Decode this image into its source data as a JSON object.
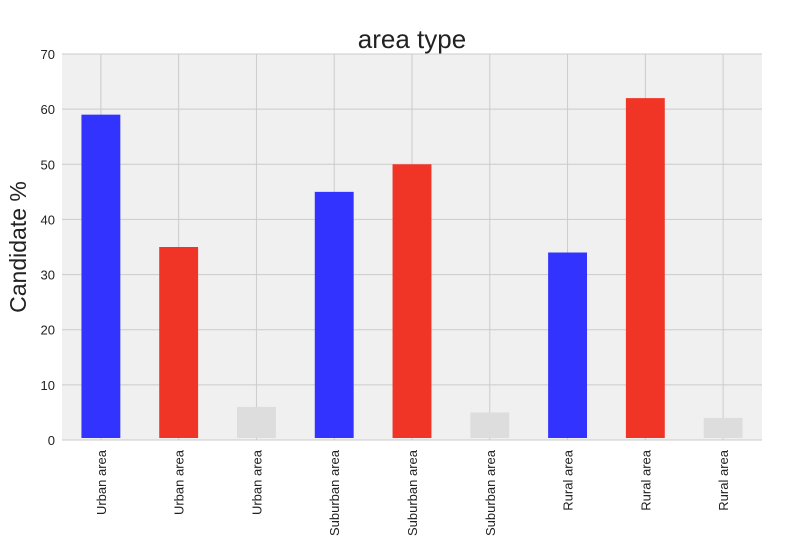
{
  "chart_data": {
    "type": "bar",
    "title": "area type",
    "xlabel": "",
    "ylabel": "Candidate %",
    "ylim": [
      0,
      70
    ],
    "yticks": [
      0,
      10,
      20,
      30,
      40,
      50,
      60,
      70
    ],
    "grid": true,
    "legend": "none",
    "categories": [
      "Urban area",
      "Urban area",
      "Urban area",
      "Suburban area",
      "Suburban area",
      "Suburban area",
      "Rural area",
      "Rural area",
      "Rural area"
    ],
    "values": [
      59,
      35,
      6,
      45,
      50,
      5,
      34,
      62,
      4
    ],
    "bar_colors": [
      "#3333ff",
      "#f03526",
      "#dddddd",
      "#3333ff",
      "#f03526",
      "#dddddd",
      "#3333ff",
      "#f03526",
      "#dddddd"
    ],
    "background_color": "#f0f0f0",
    "grid_color": "#cbcbcb"
  }
}
